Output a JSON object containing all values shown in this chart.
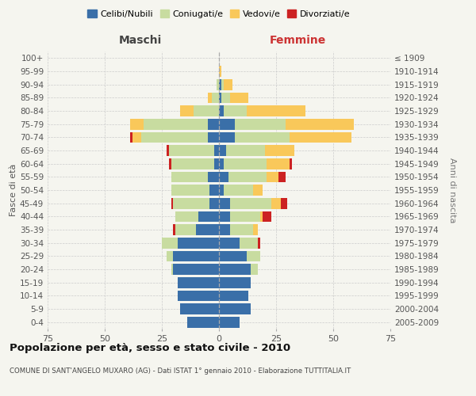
{
  "age_groups": [
    "0-4",
    "5-9",
    "10-14",
    "15-19",
    "20-24",
    "25-29",
    "30-34",
    "35-39",
    "40-44",
    "45-49",
    "50-54",
    "55-59",
    "60-64",
    "65-69",
    "70-74",
    "75-79",
    "80-84",
    "85-89",
    "90-94",
    "95-99",
    "100+"
  ],
  "birth_years": [
    "2005-2009",
    "2000-2004",
    "1995-1999",
    "1990-1994",
    "1985-1989",
    "1980-1984",
    "1975-1979",
    "1970-1974",
    "1965-1969",
    "1960-1964",
    "1955-1959",
    "1950-1954",
    "1945-1949",
    "1940-1944",
    "1935-1939",
    "1930-1934",
    "1925-1929",
    "1920-1924",
    "1915-1919",
    "1910-1914",
    "≤ 1909"
  ],
  "males": {
    "celibi": [
      14,
      17,
      18,
      18,
      20,
      20,
      18,
      10,
      9,
      4,
      4,
      5,
      2,
      2,
      5,
      5,
      0,
      0,
      0,
      0,
      0
    ],
    "coniugati": [
      0,
      0,
      0,
      0,
      1,
      3,
      7,
      9,
      10,
      16,
      17,
      16,
      19,
      20,
      29,
      28,
      11,
      3,
      1,
      0,
      0
    ],
    "vedovi": [
      0,
      0,
      0,
      0,
      0,
      0,
      0,
      0,
      0,
      0,
      0,
      0,
      0,
      0,
      4,
      6,
      6,
      2,
      0,
      0,
      0
    ],
    "divorziati": [
      0,
      0,
      0,
      0,
      0,
      0,
      0,
      1,
      0,
      1,
      0,
      0,
      1,
      1,
      1,
      0,
      0,
      0,
      0,
      0,
      0
    ]
  },
  "females": {
    "nubili": [
      9,
      14,
      13,
      14,
      14,
      12,
      9,
      5,
      5,
      5,
      2,
      4,
      2,
      3,
      7,
      7,
      2,
      1,
      1,
      0,
      0
    ],
    "coniugate": [
      0,
      0,
      0,
      0,
      3,
      6,
      8,
      10,
      13,
      18,
      13,
      17,
      19,
      17,
      24,
      22,
      10,
      4,
      1,
      0,
      0
    ],
    "vedove": [
      0,
      0,
      0,
      0,
      0,
      0,
      0,
      2,
      1,
      4,
      4,
      5,
      10,
      13,
      27,
      30,
      26,
      8,
      4,
      1,
      0
    ],
    "divorziate": [
      0,
      0,
      0,
      0,
      0,
      0,
      1,
      0,
      4,
      3,
      0,
      3,
      1,
      0,
      0,
      0,
      0,
      0,
      0,
      0,
      0
    ]
  },
  "colors": {
    "celibi": "#3a6fa8",
    "coniugati": "#c8dca0",
    "vedovi": "#f9c85a",
    "divorziati": "#cc2222"
  },
  "xlim": 75,
  "xlabel_left": "Maschi",
  "xlabel_right": "Femmine",
  "ylabel_left": "Fasce di età",
  "ylabel_right": "Anni di nascita",
  "title": "Popolazione per età, sesso e stato civile - 2010",
  "subtitle": "COMUNE DI SANT'ANGELO MUXARO (AG) - Dati ISTAT 1° gennaio 2010 - Elaborazione TUTTITALIA.IT",
  "legend_labels": [
    "Celibi/Nubili",
    "Coniugati/e",
    "Vedovi/e",
    "Divorziati/e"
  ],
  "background_color": "#f5f5ef",
  "grid_color": "#cccccc",
  "xticks": [
    -75,
    -50,
    -25,
    0,
    25,
    50,
    75
  ]
}
